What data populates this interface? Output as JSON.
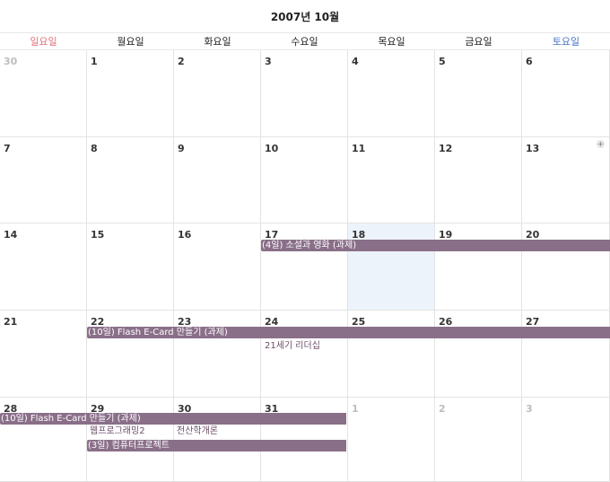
{
  "title": "2007년 10월",
  "weekdays": [
    "일요일",
    "월요일",
    "화요일",
    "수요일",
    "목요일",
    "금요일",
    "토요일"
  ],
  "colors": {
    "sunday": "#e0707a",
    "saturday": "#4a72c8",
    "event_bar": "#8a6f89",
    "today_bg": "#edf3fb"
  },
  "weeks": [
    [
      "30",
      "1",
      "2",
      "3",
      "4",
      "5",
      "6"
    ],
    [
      "7",
      "8",
      "9",
      "10",
      "11",
      "12",
      "13"
    ],
    [
      "14",
      "15",
      "16",
      "17",
      "18",
      "19",
      "20"
    ],
    [
      "21",
      "22",
      "23",
      "24",
      "25",
      "26",
      "27"
    ],
    [
      "28",
      "29",
      "30",
      "31",
      "1",
      "2",
      "3"
    ]
  ],
  "today_day": "18",
  "add_icon": "plus-icon",
  "events": [
    {
      "label": "(4일) 소설과 영화 (과제)"
    },
    {
      "label": "(10일) Flash E-Card 만들기 (과제)"
    },
    {
      "label": "(10일) Flash E-Card 만들기 (과제)"
    },
    {
      "label": "(3일) 컴퓨터프로젝트"
    }
  ],
  "notes": [
    {
      "label": "21세기 리더십"
    },
    {
      "label": "웹프로그래밍2"
    },
    {
      "label": "전산학개론"
    }
  ]
}
